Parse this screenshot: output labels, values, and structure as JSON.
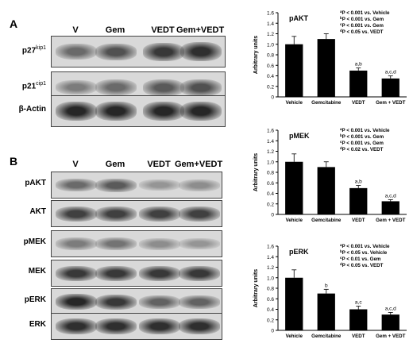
{
  "panelA": {
    "letter": "A",
    "lanes": [
      "V",
      "Gem",
      "VEDT",
      "Gem+VEDT"
    ],
    "blots": [
      {
        "name": "p27",
        "label_main": "p27",
        "label_sup": "kip1",
        "intensity": [
          0.55,
          0.7,
          0.85,
          0.9
        ]
      },
      {
        "name": "p21",
        "label_main": "p21",
        "label_sup": "cip1",
        "intensity": [
          0.45,
          0.55,
          0.65,
          0.7
        ]
      },
      {
        "name": "actin",
        "label_main": "β-Actin",
        "label_sup": "",
        "intensity": [
          0.95,
          0.95,
          0.95,
          0.95
        ]
      }
    ]
  },
  "panelB": {
    "letter": "B",
    "lanes": [
      "V",
      "Gem",
      "VEDT",
      "Gem+VEDT"
    ],
    "blots": [
      {
        "name": "pAKT",
        "label_main": "pAKT",
        "label_sup": "",
        "intensity": [
          0.55,
          0.65,
          0.3,
          0.35
        ]
      },
      {
        "name": "AKT",
        "label_main": "AKT",
        "label_sup": "",
        "intensity": [
          0.8,
          0.8,
          0.8,
          0.8
        ]
      },
      {
        "name": "pMEK",
        "label_main": "pMEK",
        "label_sup": "",
        "intensity": [
          0.45,
          0.5,
          0.35,
          0.3
        ]
      },
      {
        "name": "MEK",
        "label_main": "MEK",
        "label_sup": "",
        "intensity": [
          0.85,
          0.85,
          0.85,
          0.85
        ]
      },
      {
        "name": "pERK",
        "label_main": "pERK",
        "label_sup": "",
        "intensity": [
          0.95,
          0.85,
          0.6,
          0.6
        ]
      },
      {
        "name": "ERK",
        "label_main": "ERK",
        "label_sup": "",
        "intensity": [
          0.9,
          0.9,
          0.9,
          0.9
        ]
      }
    ]
  },
  "chart_data": [
    {
      "type": "bar",
      "title": "pAKT",
      "ylabel": "Arbitrary units",
      "categories": [
        "Vehicle",
        "Gemcitabine",
        "VEDT",
        "Gem + VEDT"
      ],
      "values": [
        1.0,
        1.1,
        0.5,
        0.35
      ],
      "errors": [
        0.15,
        0.1,
        0.05,
        0.05
      ],
      "bar_labels": [
        "",
        "",
        "a,b",
        "a,c,d"
      ],
      "ylim": [
        0,
        1.6
      ],
      "yticks": [
        "0",
        "0.2",
        "0.4",
        "0.6",
        "0.8",
        "1.0",
        "1.2",
        "1.4",
        "1.6"
      ],
      "legend": [
        {
          "sup": "a",
          "text": "P < 0.001 vs. Vehicle"
        },
        {
          "sup": "b",
          "text": "P < 0.001 vs. Gem"
        },
        {
          "sup": "c",
          "text": "P < 0.001 vs. Gem"
        },
        {
          "sup": "d",
          "text": "P < 0.05 vs. VEDT"
        }
      ]
    },
    {
      "type": "bar",
      "title": "pMEK",
      "ylabel": "Arbitrary units",
      "categories": [
        "Vehicle",
        "Gemcitabine",
        "VEDT",
        "Gem + VEDT"
      ],
      "values": [
        1.0,
        0.9,
        0.5,
        0.25
      ],
      "errors": [
        0.15,
        0.1,
        0.05,
        0.03
      ],
      "bar_labels": [
        "",
        "",
        "a,b",
        "a,c,d"
      ],
      "ylim": [
        0,
        1.6
      ],
      "yticks": [
        "0",
        "0.2",
        "0.4",
        "0.6",
        "0.8",
        "1.0",
        "1.2",
        "1.4",
        "1.6"
      ],
      "legend": [
        {
          "sup": "a",
          "text": "P < 0.001 vs. Vehicle"
        },
        {
          "sup": "b",
          "text": "P < 0.001 vs. Gem"
        },
        {
          "sup": "c",
          "text": "P < 0.001 vs. Gem"
        },
        {
          "sup": "d",
          "text": "P < 0.02 vs. VEDT"
        }
      ]
    },
    {
      "type": "bar",
      "title": "pERK",
      "ylabel": "Arbitrary units",
      "categories": [
        "Vehicle",
        "Gemcitabine",
        "VEDT",
        "Gem + VEDT"
      ],
      "values": [
        1.0,
        0.7,
        0.4,
        0.3
      ],
      "errors": [
        0.15,
        0.08,
        0.06,
        0.04
      ],
      "bar_labels": [
        "",
        "b",
        "a,c",
        "a,c,d"
      ],
      "ylim": [
        0,
        1.6
      ],
      "yticks": [
        "0",
        "0.2",
        "0.4",
        "0.6",
        "0.8",
        "1.0",
        "1.2",
        "1.4",
        "1.6"
      ],
      "legend": [
        {
          "sup": "a",
          "text": "P < 0.001 vs. Vehicle"
        },
        {
          "sup": "b",
          "text": "P < 0.05 vs. Vehicle"
        },
        {
          "sup": "c",
          "text": "P < 0.01 vs. Gem"
        },
        {
          "sup": "d",
          "text": "P < 0.05 vs. VEDT"
        }
      ]
    }
  ]
}
